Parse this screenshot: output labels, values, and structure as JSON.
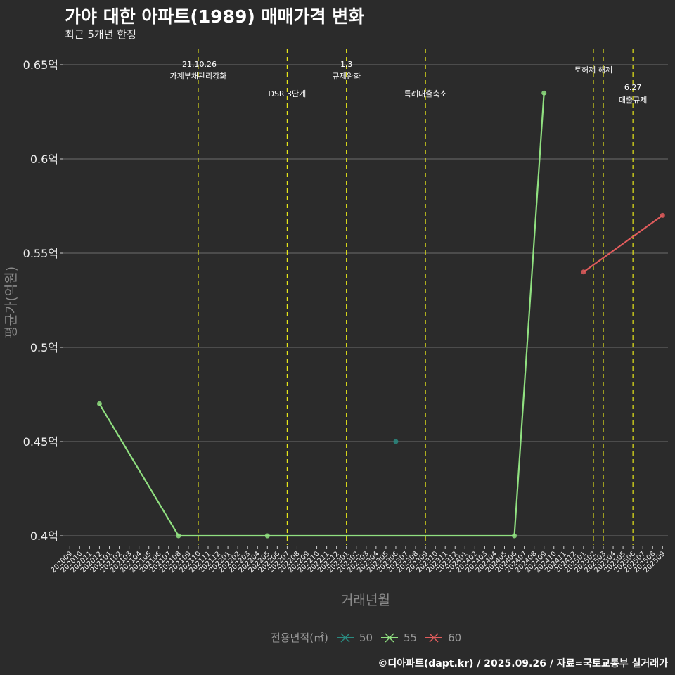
{
  "title": "가야 대한 아파트(1989) 매매가격 변화",
  "subtitle": "최근 5개년 한정",
  "caption": "©디아파트(dapt.kr) / 2025.09.26 / 자료=국토교통부 실거래가",
  "chart_data": {
    "type": "line",
    "title": "가야 대한 아파트(1989) 매매가격 변화",
    "xlabel": "거래년월",
    "ylabel": "평균가(억원)",
    "ylim": [
      0.39,
      0.66
    ],
    "yticks": [
      0.4,
      0.45,
      0.5,
      0.55,
      0.6,
      0.65
    ],
    "ytick_labels": [
      "0.4억",
      "0.45억",
      "0.5억",
      "0.55억",
      "0.6억",
      "0.65억"
    ],
    "categories": [
      "202009",
      "202010",
      "202011",
      "202012",
      "202101",
      "202102",
      "202103",
      "202104",
      "202105",
      "202106",
      "202107",
      "202108",
      "202109",
      "202110",
      "202111",
      "202112",
      "202201",
      "202202",
      "202203",
      "202204",
      "202205",
      "202206",
      "202207",
      "202208",
      "202209",
      "202210",
      "202211",
      "202212",
      "202301",
      "202302",
      "202303",
      "202304",
      "202305",
      "202306",
      "202307",
      "202308",
      "202309",
      "202310",
      "202311",
      "202312",
      "202401",
      "202402",
      "202403",
      "202404",
      "202405",
      "202406",
      "202407",
      "202408",
      "202409",
      "202410",
      "202411",
      "202412",
      "202501",
      "202502",
      "202503",
      "202504",
      "202505",
      "202506",
      "202507",
      "202508",
      "202509"
    ],
    "legend_title": "전용면적(㎡)",
    "legend_position": "bottom",
    "series": [
      {
        "name": "50",
        "color": "#2a8a80",
        "points": [
          [
            "202306",
            0.45
          ]
        ]
      },
      {
        "name": "55",
        "color": "#90e080",
        "points": [
          [
            "202012",
            0.47
          ],
          [
            "202108",
            0.4
          ],
          [
            "202205",
            0.4
          ],
          [
            "202406",
            0.4
          ],
          [
            "202409",
            0.635
          ]
        ]
      },
      {
        "name": "60",
        "color": "#e05c5c",
        "points": [
          [
            "202501",
            0.54
          ],
          [
            "202509",
            0.57
          ]
        ]
      }
    ],
    "events": [
      {
        "x": "202110",
        "lines": [
          "'21.10.26",
          "가계부채관리강화"
        ],
        "level": 0
      },
      {
        "x": "202207",
        "lines": [
          "DSR 3단계"
        ],
        "level": 2
      },
      {
        "x": "202301",
        "lines": [
          "1.3",
          "규제완화"
        ],
        "level": 0
      },
      {
        "x": "202309",
        "lines": [
          "특례대출축소"
        ],
        "level": 2
      },
      {
        "x": "202502",
        "lines": [
          "토허제 해제"
        ],
        "level": 1
      },
      {
        "x": "202503",
        "lines": [],
        "level": 1
      },
      {
        "x": "202506",
        "lines": [
          "6.27",
          "대출규제"
        ],
        "level": 3
      }
    ]
  }
}
